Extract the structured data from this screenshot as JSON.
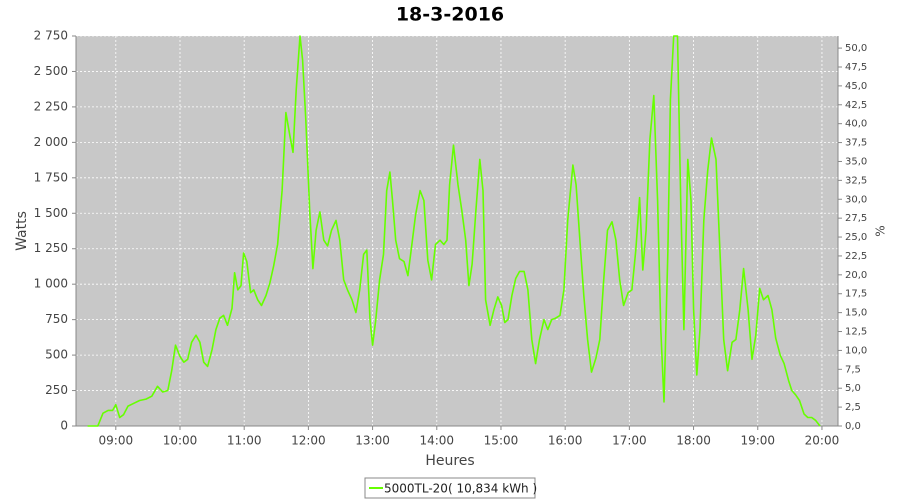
{
  "chart_data": {
    "type": "line",
    "title": "18-3-2016",
    "x_label": "Heures",
    "y_label": "Watts",
    "y2_label": "%",
    "xlim": [
      8.38,
      20.25
    ],
    "xticks": [
      {
        "value": 9,
        "label": "09:00"
      },
      {
        "value": 10,
        "label": "10:00"
      },
      {
        "value": 11,
        "label": "11:00"
      },
      {
        "value": 12,
        "label": "12:00"
      },
      {
        "value": 13,
        "label": "13:00"
      },
      {
        "value": 14,
        "label": "14:00"
      },
      {
        "value": 15,
        "label": "15:00"
      },
      {
        "value": 16,
        "label": "16:00"
      },
      {
        "value": 17,
        "label": "17:00"
      },
      {
        "value": 18,
        "label": "18:00"
      },
      {
        "value": 19,
        "label": "19:00"
      },
      {
        "value": 20,
        "label": "20:00"
      }
    ],
    "ylim": [
      0,
      2750
    ],
    "yticks": [
      0,
      250,
      500,
      750,
      {
        "value": 1000,
        "label": "1 000"
      },
      {
        "value": 1250,
        "label": "1 250"
      },
      {
        "value": 1500,
        "label": "1 500"
      },
      {
        "value": 1750,
        "label": "1 750"
      },
      {
        "value": 2000,
        "label": "2 000"
      },
      {
        "value": 2250,
        "label": "2 250"
      },
      {
        "value": 2500,
        "label": "2 500"
      },
      {
        "value": 2750,
        "label": "2 750"
      }
    ],
    "y2lim": [
      0,
      51.6
    ],
    "y2ticks": [
      {
        "value": 0,
        "label": "0,0"
      },
      {
        "value": 2.5,
        "label": "2,5"
      },
      {
        "value": 5,
        "label": "5,0"
      },
      {
        "value": 7.5,
        "label": "7,5"
      },
      {
        "value": 10,
        "label": "10,0"
      },
      {
        "value": 12.5,
        "label": "12,5"
      },
      {
        "value": 15,
        "label": "15,0"
      },
      {
        "value": 17.5,
        "label": "17,5"
      },
      {
        "value": 20,
        "label": "20,0"
      },
      {
        "value": 22.5,
        "label": "22,5"
      },
      {
        "value": 25,
        "label": "25,0"
      },
      {
        "value": 27.5,
        "label": "27,5"
      },
      {
        "value": 30,
        "label": "30,0"
      },
      {
        "value": 32.5,
        "label": "32,5"
      },
      {
        "value": 35,
        "label": "35,0"
      },
      {
        "value": 37.5,
        "label": "37,5"
      },
      {
        "value": 40,
        "label": "40,0"
      },
      {
        "value": 42.5,
        "label": "42,5"
      },
      {
        "value": 45,
        "label": "45,0"
      },
      {
        "value": 47.5,
        "label": "47,5"
      },
      {
        "value": 50,
        "label": "50,0"
      }
    ],
    "grid": true,
    "legend": "bottom",
    "x": [
      8.56,
      8.72,
      8.8,
      8.88,
      8.95,
      9.0,
      9.06,
      9.12,
      9.19,
      9.28,
      9.37,
      9.47,
      9.56,
      9.65,
      9.73,
      9.81,
      9.87,
      9.93,
      10.0,
      10.06,
      10.12,
      10.18,
      10.25,
      10.31,
      10.37,
      10.43,
      10.5,
      10.56,
      10.62,
      10.68,
      10.74,
      10.81,
      10.85,
      10.9,
      10.95,
      10.99,
      11.04,
      11.1,
      11.15,
      11.21,
      11.27,
      11.34,
      11.4,
      11.46,
      11.52,
      11.59,
      11.65,
      11.71,
      11.76,
      11.81,
      11.87,
      11.91,
      11.96,
      12.02,
      12.07,
      12.12,
      12.18,
      12.24,
      12.3,
      12.36,
      12.43,
      12.49,
      12.55,
      12.61,
      12.68,
      12.74,
      12.8,
      12.86,
      12.91,
      12.96,
      13.0,
      13.05,
      13.11,
      13.17,
      13.22,
      13.27,
      13.31,
      13.36,
      13.42,
      13.49,
      13.55,
      13.61,
      13.67,
      13.74,
      13.8,
      13.86,
      13.92,
      13.98,
      14.05,
      14.11,
      14.16,
      14.2,
      14.26,
      14.33,
      14.39,
      14.45,
      14.5,
      14.55,
      14.61,
      14.67,
      14.72,
      14.76,
      14.83,
      14.89,
      14.95,
      15.01,
      15.06,
      15.11,
      15.17,
      15.23,
      15.29,
      15.36,
      15.42,
      15.48,
      15.54,
      15.6,
      15.67,
      15.73,
      15.79,
      15.85,
      15.92,
      15.98,
      16.04,
      16.12,
      16.17,
      16.23,
      16.29,
      16.35,
      16.41,
      16.48,
      16.54,
      16.6,
      16.66,
      16.73,
      16.79,
      16.85,
      16.91,
      16.98,
      17.04,
      17.1,
      17.16,
      17.21,
      17.26,
      17.32,
      17.38,
      17.44,
      17.49,
      17.54,
      17.6,
      17.64,
      17.69,
      17.75,
      17.8,
      17.85,
      17.91,
      17.96,
      18.0,
      18.05,
      18.1,
      18.16,
      18.22,
      18.28,
      18.35,
      18.41,
      18.47,
      18.53,
      18.6,
      18.66,
      18.72,
      18.78,
      18.85,
      18.91,
      18.97,
      19.03,
      19.09,
      19.16,
      19.22,
      19.28,
      19.35,
      19.41,
      19.48,
      19.53,
      19.59,
      19.65,
      19.72,
      19.78,
      19.84,
      19.9,
      19.97
    ],
    "series": [
      {
        "name": "5000TL-20( 10,834 kWh )",
        "color": "#66ff00",
        "values": [
          0,
          0,
          90,
          110,
          110,
          150,
          60,
          80,
          140,
          160,
          180,
          190,
          210,
          280,
          240,
          250,
          390,
          570,
          490,
          450,
          470,
          590,
          640,
          590,
          450,
          420,
          540,
          680,
          760,
          780,
          710,
          830,
          1080,
          960,
          990,
          1220,
          1160,
          940,
          960,
          890,
          850,
          920,
          1010,
          1130,
          1280,
          1660,
          2210,
          2050,
          1930,
          2370,
          2750,
          2580,
          2160,
          1520,
          1110,
          1380,
          1510,
          1310,
          1270,
          1380,
          1450,
          1310,
          1030,
          960,
          890,
          800,
          960,
          1210,
          1240,
          750,
          570,
          750,
          1030,
          1210,
          1660,
          1790,
          1590,
          1310,
          1180,
          1160,
          1060,
          1270,
          1490,
          1660,
          1590,
          1170,
          1030,
          1280,
          1310,
          1280,
          1310,
          1700,
          1980,
          1700,
          1520,
          1310,
          990,
          1140,
          1520,
          1880,
          1660,
          890,
          710,
          820,
          910,
          850,
          730,
          750,
          920,
          1040,
          1090,
          1090,
          960,
          610,
          440,
          610,
          750,
          680,
          750,
          760,
          780,
          960,
          1450,
          1840,
          1700,
          1310,
          920,
          610,
          380,
          480,
          610,
          1030,
          1380,
          1440,
          1310,
          1030,
          850,
          940,
          960,
          1240,
          1610,
          1100,
          1380,
          2020,
          2330,
          1590,
          680,
          170,
          1240,
          2300,
          2750,
          2750,
          1590,
          680,
          1880,
          1590,
          820,
          360,
          680,
          1450,
          1800,
          2030,
          1880,
          1240,
          610,
          390,
          590,
          610,
          820,
          1110,
          820,
          470,
          640,
          970,
          890,
          920,
          820,
          620,
          500,
          440,
          320,
          250,
          220,
          180,
          85,
          60,
          60,
          40,
          0
        ]
      }
    ]
  }
}
